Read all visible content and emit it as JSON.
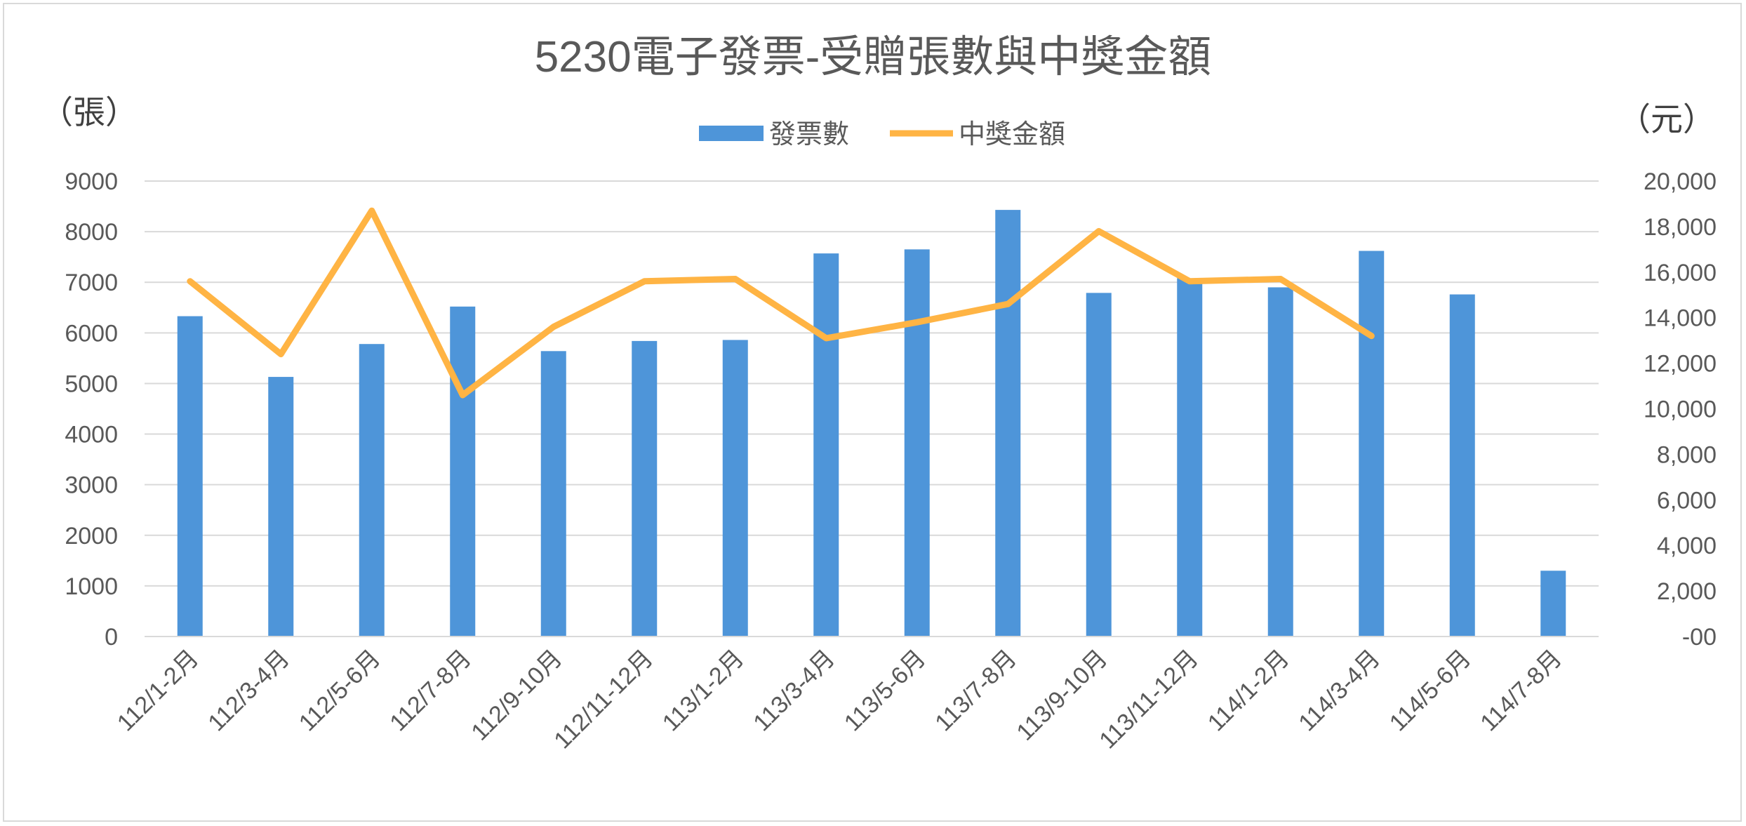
{
  "chart_data": {
    "type": "bar",
    "title": "5230電子發票-受贈張數與中獎金額",
    "ylabel_left": "（張）",
    "ylabel_right": "（元）",
    "legend_position": "top-center",
    "grid": true,
    "categories": [
      "112/1-2月",
      "112/3-4月",
      "112/5-6月",
      "112/7-8月",
      "112/9-10月",
      "112/11-12月",
      "113/1-2月",
      "113/3-4月",
      "113/5-6月",
      "113/7-8月",
      "113/9-10月",
      "113/11-12月",
      "114/1-2月",
      "114/3-4月",
      "114/5-6月",
      "114/7-8月"
    ],
    "left_axis": {
      "ylim": [
        0,
        9000
      ],
      "ticks": [
        0,
        1000,
        2000,
        3000,
        4000,
        5000,
        6000,
        7000,
        8000,
        9000
      ],
      "tick_labels": [
        "0",
        "1000",
        "2000",
        "3000",
        "4000",
        "5000",
        "6000",
        "7000",
        "8000",
        "9000"
      ]
    },
    "right_axis": {
      "ylim": [
        0,
        20000
      ],
      "ticks": [
        0,
        2000,
        4000,
        6000,
        8000,
        10000,
        12000,
        14000,
        16000,
        18000,
        20000
      ],
      "tick_labels": [
        "-00",
        "2,000",
        "4,000",
        "6,000",
        "8,000",
        "10,000",
        "12,000",
        "14,000",
        "16,000",
        "18,000",
        "20,000"
      ]
    },
    "series": [
      {
        "name": "發票數",
        "type": "bar",
        "axis": "left",
        "color": "#4e95d9",
        "values": [
          6330,
          5130,
          5780,
          6520,
          5640,
          5840,
          5860,
          7570,
          7650,
          8430,
          6790,
          7080,
          6900,
          7620,
          6760,
          1300
        ]
      },
      {
        "name": "中獎金額",
        "type": "line",
        "axis": "right",
        "color": "#ffb444",
        "values": [
          15600,
          12400,
          18700,
          10600,
          13600,
          15600,
          15700,
          13100,
          13800,
          14600,
          17800,
          15600,
          15700,
          13200,
          null,
          null
        ]
      }
    ]
  }
}
